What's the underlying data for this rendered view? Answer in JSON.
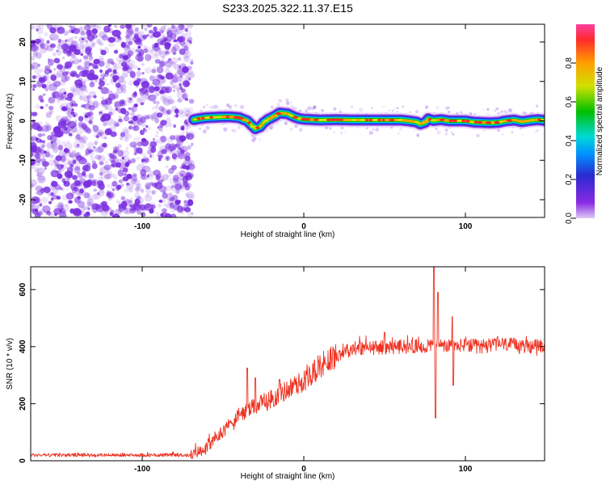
{
  "title": "S233.2025.322.11.37.E15",
  "colors": {
    "snr_line": "#ee3322",
    "noise_purple": "#7a2ee0",
    "colorbar_stops": [
      "#ddc8f5",
      "#8a2be2",
      "#2a2ad0",
      "#0090ff",
      "#00d8d8",
      "#00c000",
      "#d0e000",
      "#ffa000",
      "#ff2a2a",
      "#ff40a0"
    ]
  },
  "chart_data": [
    {
      "type": "heatmap",
      "name": "spectrogram",
      "xlabel": "Height of straight line (km)",
      "ylabel": "Frequency (Hz)",
      "xlim": [
        -169,
        149
      ],
      "ylim": [
        -24.5,
        24.5
      ],
      "xticks": [
        -100,
        0,
        100
      ],
      "yticks": [
        -20,
        -10,
        0,
        10,
        20
      ],
      "noise_region_x": [
        -169,
        -69
      ],
      "ridge_x": [
        -68,
        -64,
        -60,
        -55,
        -50,
        -45,
        -40,
        -37,
        -35,
        -30,
        -27,
        -25,
        -22,
        -18,
        -15,
        -10,
        -6,
        -3,
        0,
        5,
        10,
        20,
        30,
        40,
        50,
        60,
        65,
        70,
        72,
        75,
        77,
        80,
        85,
        90,
        95,
        100,
        105,
        110,
        115,
        120,
        125,
        130,
        135,
        140,
        145,
        149
      ],
      "ridge_freq": [
        0.3,
        0.6,
        0.8,
        0.9,
        1.0,
        1.0,
        0.8,
        0.3,
        0.0,
        -2.0,
        -1.5,
        -0.5,
        0.4,
        1.2,
        2.0,
        1.8,
        1.0,
        0.6,
        0.4,
        0.3,
        0.2,
        0.3,
        0.2,
        0.2,
        0.2,
        0.2,
        0.0,
        -0.3,
        -0.8,
        -0.4,
        0.5,
        0.1,
        0.3,
        0.0,
        0.0,
        0.0,
        -0.3,
        -0.4,
        -0.5,
        -0.4,
        0.0,
        0.2,
        -0.2,
        0.1,
        0.3,
        0.1
      ],
      "colorbar": {
        "label": "Normalized spectral amplitude",
        "range": [
          0,
          1
        ],
        "ticks": [
          "0.0",
          "0.2",
          "0.4",
          "0.6",
          "0.8"
        ]
      }
    },
    {
      "type": "line",
      "name": "snr",
      "xlabel": "Height of straight line (km)",
      "ylabel": "SNR (10 * v/v)",
      "xlim": [
        -169,
        149
      ],
      "ylim": [
        0,
        680
      ],
      "xticks": [
        -100,
        0,
        100
      ],
      "yticks": [
        0,
        200,
        400,
        600
      ],
      "trend_x": [
        -169,
        -70,
        -60,
        -50,
        -40,
        -30,
        -20,
        -10,
        0,
        10,
        20,
        30,
        40,
        50,
        60,
        70,
        80,
        90,
        100,
        110,
        120,
        130,
        140,
        149
      ],
      "trend_y": [
        20,
        20,
        45,
        105,
        160,
        190,
        215,
        250,
        280,
        330,
        370,
        395,
        395,
        398,
        400,
        400,
        405,
        400,
        405,
        400,
        410,
        405,
        400,
        405
      ],
      "spikes": [
        {
          "x": -35,
          "y": 325
        },
        {
          "x": -30,
          "y": 290
        },
        {
          "x": -15,
          "y": 285
        },
        {
          "x": 50,
          "y": 450
        },
        {
          "x": 80.5,
          "y": 680
        },
        {
          "x": 81.5,
          "y": 150
        },
        {
          "x": 83,
          "y": 590
        },
        {
          "x": 92,
          "y": 505
        },
        {
          "x": 92.5,
          "y": 265
        }
      ]
    }
  ]
}
